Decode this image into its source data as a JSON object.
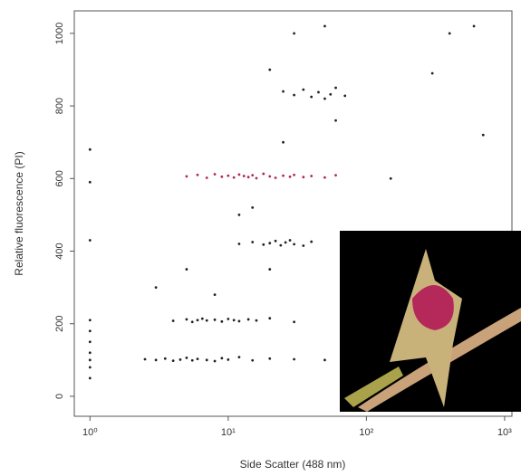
{
  "chart_data": {
    "type": "scatter",
    "xlabel": "Side Scatter (488 nm)",
    "ylabel": "Relative fluorescence (PI)",
    "xscale": "log",
    "xlim": [
      0.77,
      1130
    ],
    "ylim": [
      -55,
      1062
    ],
    "xticks": [
      {
        "value": 1,
        "label": "10⁰"
      },
      {
        "value": 10,
        "label": "10¹"
      },
      {
        "value": 100,
        "label": "10²"
      },
      {
        "value": 1000,
        "label": "10³"
      }
    ],
    "yticks": [
      0,
      200,
      400,
      600,
      800,
      1000
    ],
    "series": [
      {
        "color": "#222222",
        "x": [
          2.5,
          3,
          3.5,
          4,
          4.5,
          5,
          5.5,
          6,
          7,
          8,
          9,
          10,
          12,
          15,
          20,
          30,
          50,
          1,
          1,
          1,
          1,
          1,
          1,
          1,
          4,
          5,
          5.5,
          6,
          6.5,
          7,
          8,
          9,
          10,
          11,
          12,
          14,
          16,
          20,
          30,
          12,
          15,
          18,
          20,
          22,
          24,
          26,
          28,
          30,
          35,
          40,
          25,
          30,
          35,
          40,
          45,
          50,
          55,
          60,
          70,
          3,
          5,
          8,
          12,
          15,
          20,
          25,
          20,
          150,
          300,
          400,
          600,
          700,
          50,
          30,
          1,
          1,
          1,
          100,
          80,
          200,
          60
        ],
        "y": [
          102,
          100,
          104,
          98,
          101,
          106,
          99,
          103,
          100,
          97,
          105,
          101,
          108,
          99,
          104,
          102,
          100,
          50,
          80,
          100,
          120,
          150,
          180,
          210,
          208,
          212,
          205,
          210,
          214,
          209,
          211,
          206,
          213,
          210,
          207,
          212,
          209,
          215,
          205,
          420,
          425,
          418,
          422,
          428,
          416,
          424,
          430,
          419,
          415,
          426,
          840,
          830,
          845,
          825,
          838,
          820,
          832,
          850,
          828,
          300,
          350,
          280,
          500,
          520,
          350,
          700,
          900,
          600,
          890,
          1000,
          1020,
          720,
          1020,
          1000,
          590,
          680,
          430,
          300,
          150,
          40,
          760
        ]
      },
      {
        "color": "#b0284a",
        "x": [
          5,
          6,
          7,
          8,
          9,
          10,
          11,
          12,
          13,
          14,
          15,
          16,
          18,
          20,
          22,
          25,
          28,
          30,
          35,
          40,
          50,
          60
        ],
        "y": [
          606,
          610,
          602,
          612,
          605,
          608,
          603,
          611,
          607,
          604,
          609,
          601,
          613,
          606,
          602,
          608,
          605,
          610,
          604,
          607,
          603,
          609
        ]
      }
    ]
  }
}
